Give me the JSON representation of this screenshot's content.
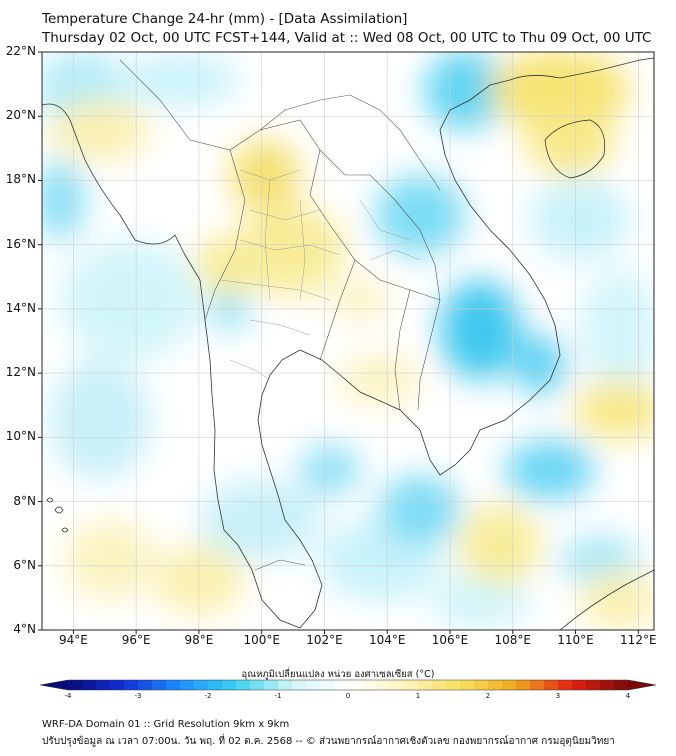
{
  "title_line1": "Temperature Change 24-hr (mm) - [Data Assimilation]",
  "title_line2": "Thursday 02 Oct, 00 UTC FCST+144, Valid at :: Wed 08 Oct, 00 UTC to Thu 09 Oct, 00 UTC",
  "colorbar": {
    "label": "อุณหภูมิเปลี่ยนแปลง หน่วย องศาเซลเซียส (°C)",
    "ticks": [
      "-4",
      "-3",
      "-2",
      "-1",
      "0",
      "1",
      "2",
      "3",
      "4"
    ],
    "range": [
      -4,
      4
    ],
    "colors": [
      "#0a0a78",
      "#1030d8",
      "#1e90ff",
      "#3cd2f0",
      "#d2f5f8",
      "#ffffff",
      "#fbf3c0",
      "#f8e060",
      "#f0a820",
      "#e02010",
      "#780a0a"
    ]
  },
  "map": {
    "lat_ticks": [
      "22°N",
      "20°N",
      "18°N",
      "16°N",
      "14°N",
      "12°N",
      "10°N",
      "8°N",
      "6°N",
      "4°N"
    ],
    "lon_ticks": [
      "94°E",
      "96°E",
      "98°E",
      "100°E",
      "102°E",
      "104°E",
      "106°E",
      "108°E",
      "110°E",
      "112°E"
    ],
    "lat_range": [
      4,
      22
    ],
    "lon_range": [
      93,
      112.5
    ]
  },
  "footer_line1": "WRF-DA Domain 01 :: Grid Resolution 9km x 9km",
  "footer_line2": "ปรับปรุงข้อมูล ณ เวลา 07:00น. วัน พฤ. ที่ 02 ต.ค. 2568 -- © ส่วนพยากรณ์อากาศเชิงตัวเลข กองพยากรณ์อากาศ กรมอุตุนิยมวิทยา"
}
